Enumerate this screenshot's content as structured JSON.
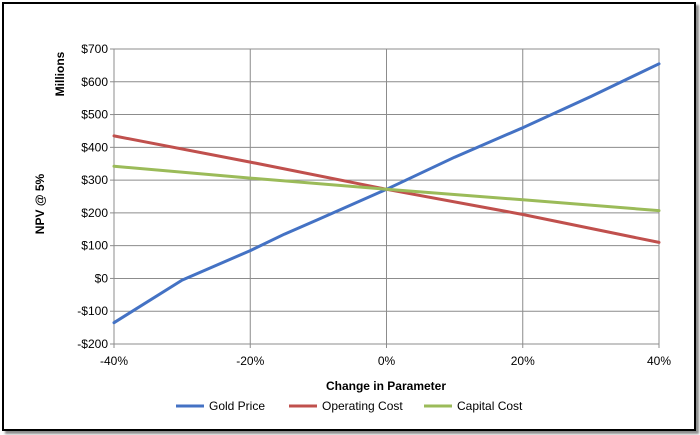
{
  "chart_data": {
    "type": "line",
    "xlabel": "Change in Parameter",
    "ylabel": "NPV @ 5%",
    "yunit": "Millions",
    "xlim": [
      -40,
      40
    ],
    "ylim": [
      -200,
      700
    ],
    "x_ticks": [
      -40,
      -20,
      0,
      20,
      40
    ],
    "x_tick_labels": [
      "-40%",
      "-20%",
      "0%",
      "20%",
      "40%"
    ],
    "y_ticks": [
      -200,
      -100,
      0,
      100,
      200,
      300,
      400,
      500,
      600,
      700
    ],
    "y_tick_labels": [
      "-$200",
      "-$100",
      "$0",
      "$100",
      "$200",
      "$300",
      "$400",
      "$500",
      "$600",
      "$700"
    ],
    "grid": true,
    "legend_position": "bottom",
    "series": [
      {
        "name": "Gold Price",
        "color": "#4472c4",
        "x": [
          -40,
          -30,
          -20,
          -15,
          -10,
          0,
          10,
          20,
          30,
          40
        ],
        "y": [
          -135,
          -5,
          85,
          135,
          180,
          272,
          370,
          460,
          555,
          655
        ]
      },
      {
        "name": "Operating Cost",
        "color": "#c0504d",
        "x": [
          -40,
          -20,
          0,
          20,
          40
        ],
        "y": [
          435,
          355,
          272,
          195,
          110
        ]
      },
      {
        "name": "Capital Cost",
        "color": "#9bbb59",
        "x": [
          -40,
          -20,
          0,
          20,
          40
        ],
        "y": [
          342,
          306,
          272,
          240,
          207
        ]
      }
    ]
  }
}
